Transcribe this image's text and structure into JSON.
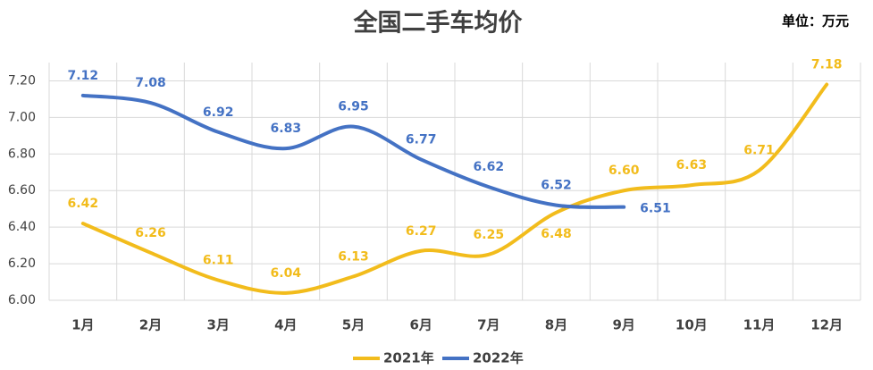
{
  "chart_data": {
    "type": "line",
    "title": "全国二手车均价",
    "annotation": "单位：万元",
    "categories": [
      "1月",
      "2月",
      "3月",
      "4月",
      "5月",
      "6月",
      "7月",
      "8月",
      "9月",
      "10月",
      "11月",
      "12月"
    ],
    "series": [
      {
        "name": "2021年",
        "color": "#f2bc1c",
        "values": [
          6.42,
          6.26,
          6.11,
          6.04,
          6.13,
          6.27,
          6.25,
          6.48,
          6.6,
          6.63,
          6.71,
          7.18
        ],
        "value_labels": [
          "6.42",
          "6.26",
          "6.11",
          "6.04",
          "6.13",
          "6.27",
          "6.25",
          "6.48",
          "6.60",
          "6.63",
          "6.71",
          "7.18"
        ]
      },
      {
        "name": "2022年",
        "color": "#4472c4",
        "values": [
          7.12,
          7.08,
          6.92,
          6.83,
          6.95,
          6.77,
          6.62,
          6.52,
          6.51,
          null,
          null,
          null
        ],
        "value_labels": [
          "7.12",
          "7.08",
          "6.92",
          "6.83",
          "6.95",
          "6.77",
          "6.62",
          "6.52",
          "6.51",
          null,
          null,
          null
        ]
      }
    ],
    "ylim": [
      6.0,
      7.3
    ],
    "yticks": [
      {
        "value": 6.0,
        "label": "6.00"
      },
      {
        "value": 6.2,
        "label": "6.20"
      },
      {
        "value": 6.4,
        "label": "6.40"
      },
      {
        "value": 6.6,
        "label": "6.60"
      },
      {
        "value": 6.8,
        "label": "6.80"
      },
      {
        "value": 7.0,
        "label": "7.00"
      },
      {
        "value": 7.2,
        "label": "7.20"
      }
    ],
    "grid": true,
    "legend": "bottom"
  }
}
